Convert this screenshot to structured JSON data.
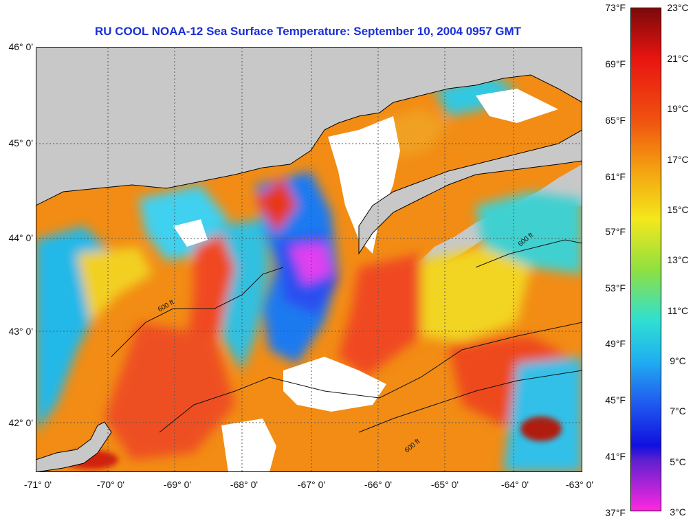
{
  "title": "RU COOL  NOAA-12  Sea Surface Temperature:  September 10, 2004 0957 GMT",
  "axes": {
    "latitude_labels": [
      "46° 0'",
      "45° 0'",
      "44° 0'",
      "43° 0'",
      "42° 0'"
    ],
    "longitude_labels": [
      "-71° 0'",
      "-70° 0'",
      "-69° 0'",
      "-68° 0'",
      "-67° 0'",
      "-66° 0'",
      "-65° 0'",
      "-64° 0'",
      "-63° 0'"
    ]
  },
  "isobath_label": "600 ft",
  "colorbar": {
    "fahrenheit_labels": [
      "73°F",
      "69°F",
      "65°F",
      "61°F",
      "57°F",
      "53°F",
      "49°F",
      "45°F",
      "41°F",
      "37°F"
    ],
    "celsius_labels": [
      "23°C",
      "21°C",
      "19°C",
      "17°C",
      "15°C",
      "13°C",
      "11°C",
      "9°C",
      "7°C",
      "5°C",
      "3°C"
    ]
  },
  "colors": {
    "title": "#1a2fd6",
    "land": "#c8c8c8",
    "cloud": "#ffffff",
    "warm": "#f03010",
    "cold": "#ff30e0"
  }
}
